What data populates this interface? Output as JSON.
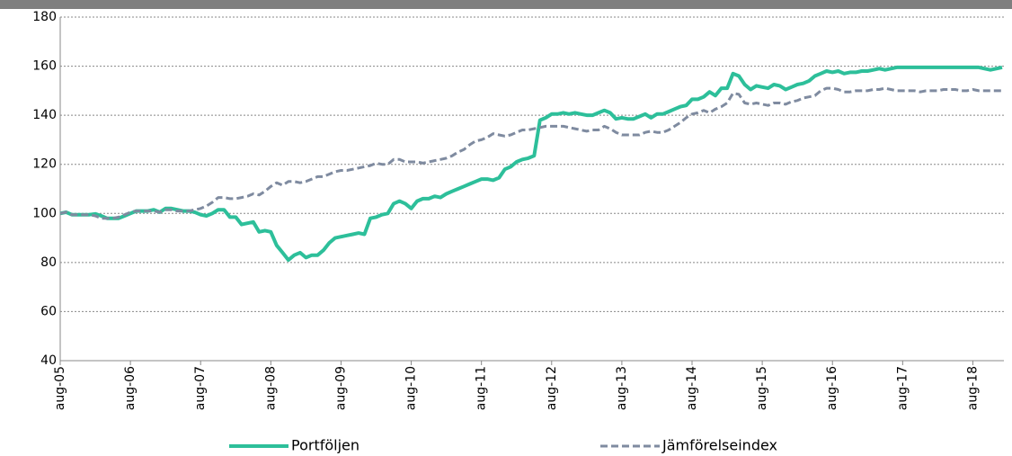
{
  "chart_data": {
    "type": "line",
    "categories": [
      "aug-05",
      null,
      null,
      null,
      null,
      null,
      null,
      null,
      null,
      null,
      null,
      null,
      "aug-06",
      null,
      null,
      null,
      null,
      null,
      null,
      null,
      null,
      null,
      null,
      null,
      "aug-07",
      null,
      null,
      null,
      null,
      null,
      null,
      null,
      null,
      null,
      null,
      null,
      "aug-08",
      null,
      null,
      null,
      null,
      null,
      null,
      null,
      null,
      null,
      null,
      null,
      "aug-09",
      null,
      null,
      null,
      null,
      null,
      null,
      null,
      null,
      null,
      null,
      null,
      "aug-10",
      null,
      null,
      null,
      null,
      null,
      null,
      null,
      null,
      null,
      null,
      null,
      "aug-11",
      null,
      null,
      null,
      null,
      null,
      null,
      null,
      null,
      null,
      null,
      null,
      "aug-12",
      null,
      null,
      null,
      null,
      null,
      null,
      null,
      null,
      null,
      null,
      null,
      "aug-13",
      null,
      null,
      null,
      null,
      null,
      null,
      null,
      null,
      null,
      null,
      null,
      "aug-14",
      null,
      null,
      null,
      null,
      null,
      null,
      null,
      null,
      null,
      null,
      null,
      "aug-15",
      null,
      null,
      null,
      null,
      null,
      null,
      null,
      null,
      null,
      null,
      null,
      "aug-16",
      null,
      null,
      null,
      null,
      null,
      null,
      null,
      null,
      null,
      null,
      null,
      "aug-17",
      null,
      null,
      null,
      null,
      null,
      null,
      null,
      null,
      null,
      null,
      null,
      "aug-18",
      null,
      null,
      null,
      null,
      null
    ],
    "series": [
      {
        "name": "Portföljen",
        "color": "#2dbf9a",
        "dashed": false,
        "values": [
          100,
          100.5,
          99.5,
          99.5,
          99.5,
          99.5,
          99.8,
          99,
          98,
          98,
          98,
          99,
          100,
          101,
          101,
          101,
          101.5,
          100.5,
          102,
          102,
          101.5,
          101,
          101,
          100.5,
          99.5,
          99,
          100,
          101.5,
          101.5,
          98.5,
          98.5,
          95.5,
          96,
          96.5,
          92.5,
          93,
          92.5,
          87,
          84,
          81,
          83,
          84,
          82,
          83,
          83,
          85,
          88,
          90,
          90.5,
          91,
          91.5,
          92,
          91.5,
          98,
          98.5,
          99.5,
          100,
          104,
          105,
          104,
          102,
          105,
          106,
          106,
          107,
          106.5,
          108,
          109,
          110,
          111,
          112,
          113,
          114,
          114,
          113.5,
          114.5,
          118,
          119,
          121,
          122,
          122.5,
          123.5,
          138,
          139,
          140.5,
          140.5,
          141,
          140.5,
          141,
          140.5,
          140,
          140,
          141,
          142,
          141,
          138.5,
          139,
          138.5,
          138.5,
          139.5,
          140.5,
          139,
          140.5,
          140.5,
          141.5,
          142.5,
          143.5,
          144,
          146.5,
          146.5,
          147.5,
          149.5,
          148,
          151,
          151,
          157,
          156,
          152.5,
          150.5,
          152,
          151.5,
          151,
          152.5,
          152,
          150.5,
          151.5,
          152.5,
          153,
          154,
          156,
          157,
          158,
          157.5,
          158,
          157,
          157.5,
          157.5,
          158,
          158,
          158.5,
          159,
          158.5,
          159,
          159.5,
          159.5,
          159.5,
          159.5,
          159.5,
          159.5,
          159.5,
          159.5,
          159.5,
          159.5,
          159.5,
          159.5,
          159.5,
          159.5,
          159.5,
          159,
          158.5,
          159,
          159.5
        ]
      },
      {
        "name": "Jämförelseindex",
        "color": "#7f8ba0",
        "dashed": true,
        "values": [
          100,
          100.5,
          99.5,
          99.5,
          99.5,
          99.5,
          99,
          98,
          98,
          98,
          98.5,
          99.5,
          100.5,
          101,
          101,
          101,
          101,
          100.5,
          101.5,
          101.5,
          101,
          101,
          101,
          101.5,
          102,
          103,
          104.5,
          106.5,
          106.5,
          106,
          106,
          106.5,
          107,
          108,
          107.5,
          109,
          111,
          112.5,
          111.5,
          113,
          113,
          112.5,
          113,
          114,
          115,
          115,
          116,
          117,
          117.5,
          117.5,
          118,
          118.5,
          119,
          119.5,
          120.5,
          120,
          120,
          122,
          122,
          121,
          121,
          121,
          120.5,
          121,
          121.5,
          122,
          122.5,
          123.5,
          125,
          126,
          128,
          129.5,
          130,
          131,
          132.5,
          132,
          131.5,
          132,
          133,
          134,
          134,
          134.5,
          135,
          135.5,
          135.5,
          135.5,
          135.5,
          135,
          134.5,
          134,
          133.5,
          134,
          134,
          135.5,
          134.5,
          133,
          132,
          132,
          132,
          132,
          133,
          133.5,
          133,
          133,
          134,
          135.5,
          137,
          139,
          140.5,
          141,
          142,
          141,
          142.5,
          143.5,
          145,
          149,
          148.5,
          145,
          144.5,
          145,
          144.5,
          144,
          145,
          145,
          144.5,
          145.5,
          146,
          147,
          147.5,
          148,
          150,
          151,
          151,
          150.5,
          149.5,
          149.5,
          150,
          150,
          150,
          150.5,
          150.5,
          151,
          150.5,
          150,
          150,
          150,
          150,
          149.5,
          150,
          150,
          150,
          150.5,
          150.5,
          150.5,
          150,
          150,
          150.5,
          150,
          150,
          150,
          150,
          150
        ]
      }
    ],
    "ylim": [
      40,
      180
    ],
    "yticks": [
      40,
      60,
      80,
      100,
      120,
      140,
      160,
      180
    ],
    "grid": true,
    "legend": "bottom"
  }
}
